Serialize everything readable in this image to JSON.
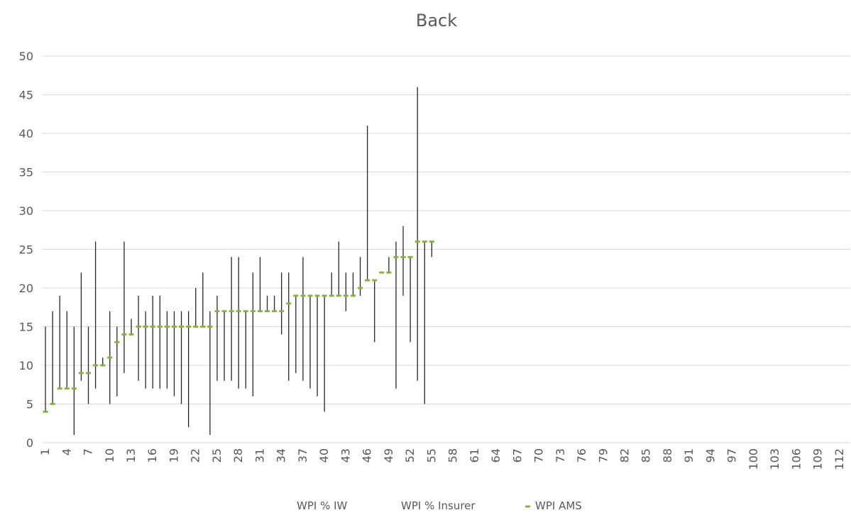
{
  "chart_data": {
    "type": "stock",
    "title": "Back",
    "ylim": [
      0,
      50
    ],
    "yticks": [
      0,
      5,
      10,
      15,
      20,
      25,
      30,
      35,
      40,
      45,
      50
    ],
    "x_categories": "1-113",
    "x_tick_labels": [
      "1",
      "4",
      "7",
      "10",
      "13",
      "16",
      "19",
      "22",
      "25",
      "28",
      "31",
      "34",
      "37",
      "40",
      "43",
      "46",
      "49",
      "52",
      "55",
      "58",
      "61",
      "64",
      "67",
      "70",
      "73",
      "76",
      "79",
      "82",
      "85",
      "88",
      "91",
      "94",
      "97",
      "100",
      "103",
      "106",
      "109",
      "112"
    ],
    "grid": "horizontal",
    "legend_position": "bottom",
    "legend": [
      "WPI % IW",
      "WPI % Insurer",
      "WPI AMS"
    ],
    "series": [
      {
        "name": "WPI % IW",
        "values": [
          15,
          17,
          19,
          17,
          15,
          22,
          15,
          26,
          11,
          17,
          15,
          26,
          16,
          19,
          17,
          19,
          19,
          17,
          17,
          17,
          17,
          20,
          22,
          17,
          19,
          17,
          24,
          24,
          17,
          22,
          24,
          19,
          19,
          22,
          22,
          19,
          24,
          19,
          19,
          19,
          22,
          26,
          22,
          22,
          24,
          41,
          21,
          22,
          24,
          26,
          28,
          24,
          46,
          26,
          26
        ]
      },
      {
        "name": "WPI % Insurer",
        "values": [
          4,
          5,
          7,
          7,
          1,
          8,
          5,
          7,
          10,
          5,
          6,
          9,
          14,
          8,
          7,
          7,
          7,
          7,
          6,
          5,
          2,
          15,
          15,
          1,
          8,
          8,
          8,
          7,
          7,
          6,
          17,
          17,
          17,
          14,
          8,
          9,
          8,
          7,
          6,
          4,
          19,
          19,
          17,
          19,
          19,
          21,
          13,
          22,
          22,
          7,
          19,
          13,
          8,
          5,
          24
        ]
      },
      {
        "name": "WPI AMS",
        "values": [
          4,
          5,
          7,
          7,
          7,
          9,
          9,
          10,
          10,
          11,
          13,
          14,
          14,
          15,
          15,
          15,
          15,
          15,
          15,
          15,
          15,
          15,
          15,
          15,
          17,
          17,
          17,
          17,
          17,
          17,
          17,
          17,
          17,
          17,
          18,
          19,
          19,
          19,
          19,
          19,
          19,
          19,
          19,
          19,
          20,
          21,
          21,
          22,
          22,
          24,
          24,
          24,
          26,
          26,
          26
        ]
      }
    ]
  }
}
